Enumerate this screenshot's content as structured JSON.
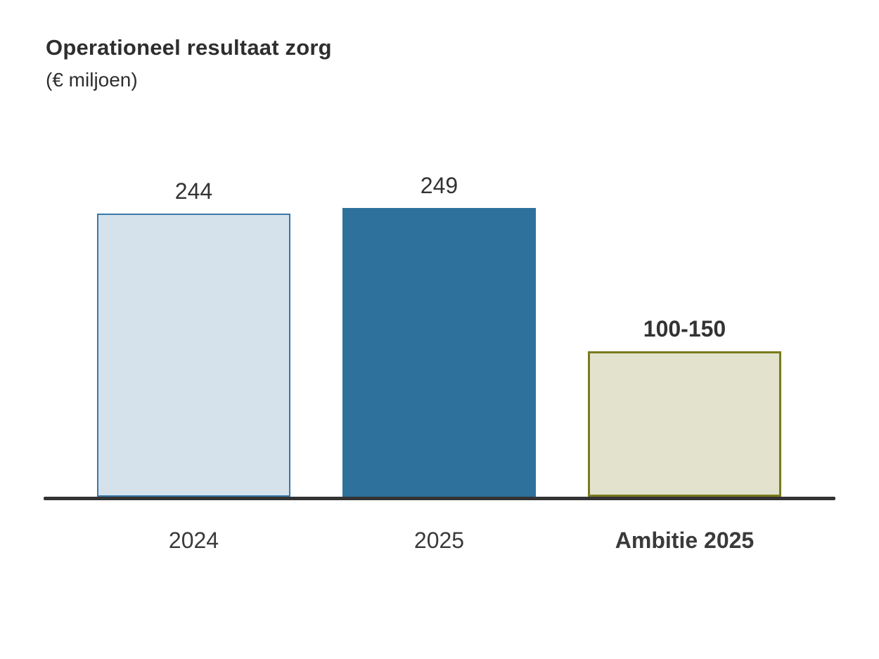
{
  "header": {
    "title": "Operationeel resultaat zorg",
    "subtitle": "(€ miljoen)"
  },
  "chart_data": {
    "type": "bar",
    "title": "Operationeel resultaat zorg",
    "subtitle": "(€ miljoen)",
    "unit": "€ miljoen",
    "categories": [
      "2024",
      "2025",
      "Ambitie 2025"
    ],
    "values": [
      244,
      249,
      125
    ],
    "value_labels": [
      "244",
      "249",
      "100-150"
    ],
    "ylim": [
      0,
      260
    ],
    "grid": false,
    "legend": "none",
    "axis_color": "#333333",
    "text_color": "#333333",
    "bars": [
      {
        "category": "2024",
        "value": 244,
        "label": "244",
        "fill": "#d5e2ec",
        "border": "#3878a8",
        "border_px": 2,
        "emphasis": false
      },
      {
        "category": "2025",
        "value": 249,
        "label": "249",
        "fill": "#2e719c",
        "border": "#2e719c",
        "border_px": 0,
        "emphasis": false
      },
      {
        "category": "Ambitie 2025",
        "value": 125,
        "value_range": [
          100,
          150
        ],
        "label": "100-150",
        "fill": "#e3e2cd",
        "border": "#797b1d",
        "border_px": 3,
        "emphasis": true
      }
    ]
  }
}
